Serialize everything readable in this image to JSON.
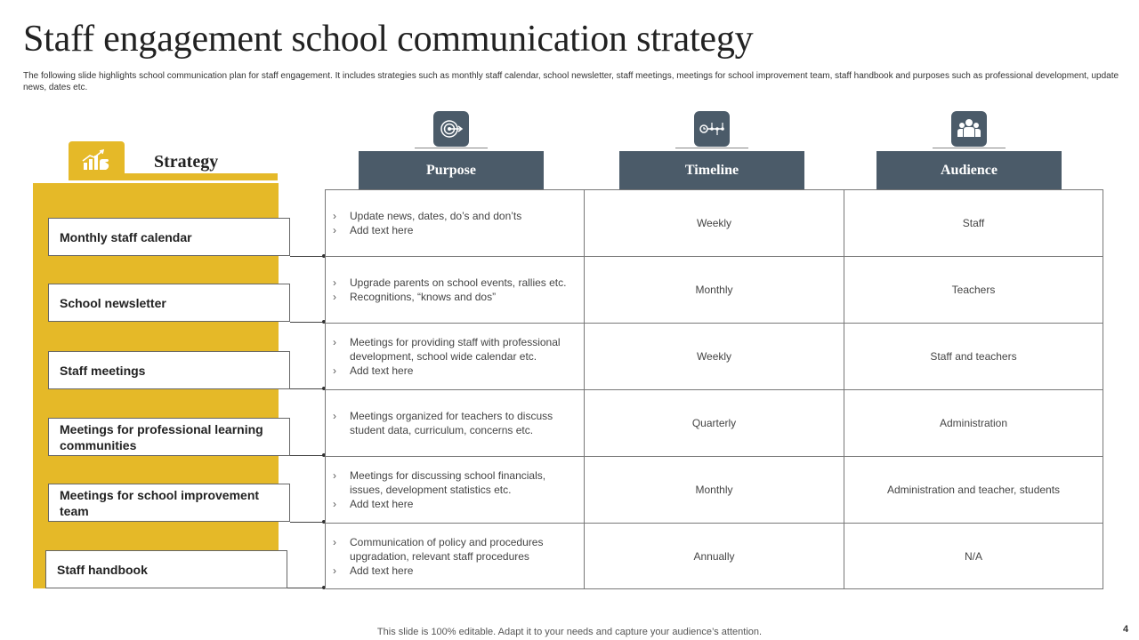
{
  "title": "Staff engagement school communication strategy",
  "description": "The following slide highlights school communication plan  for staff engagement. It includes strategies such as monthly staff calendar, school newsletter, staff meetings, meetings for school improvement team, staff handbook and purposes such as professional development, update news, dates etc.",
  "strategy": {
    "label": "Strategy",
    "icon": "chart-hand-icon",
    "items": [
      "Monthly staff calendar",
      "School newsletter",
      "Staff meetings",
      "Meetings for professional learning communities",
      "Meetings for school improvement team",
      "Staff handbook"
    ]
  },
  "headers": {
    "purpose": {
      "label": "Purpose",
      "icon": "target-icon"
    },
    "timeline": {
      "label": "Timeline",
      "icon": "timeline-icon"
    },
    "audience": {
      "label": "Audience",
      "icon": "people-icon"
    }
  },
  "rows": [
    {
      "purpose": [
        "Update news, dates, do’s and don’ts",
        "Add text here"
      ],
      "timeline": "Weekly",
      "audience": "Staff"
    },
    {
      "purpose": [
        "Upgrade parents on school events, rallies etc.",
        "Recognitions, “knows and dos”"
      ],
      "timeline": "Monthly",
      "audience": "Teachers"
    },
    {
      "purpose": [
        "Meetings for providing staff with professional development,  school wide calendar etc.",
        "Add text here"
      ],
      "timeline": "Weekly",
      "audience": "Staff and teachers"
    },
    {
      "purpose": [
        "Meetings organized for teachers to discuss student data, curriculum, concerns etc."
      ],
      "timeline": "Quarterly",
      "audience": "Administration"
    },
    {
      "purpose": [
        "Meetings for discussing school financials, issues, development  statistics etc.",
        "Add text here"
      ],
      "timeline": "Monthly",
      "audience": "Administration and teacher, students"
    },
    {
      "purpose": [
        "Communication of policy and procedures upgradation, relevant  staff procedures",
        "Add text here"
      ],
      "timeline": "Annually",
      "audience": "N/A"
    }
  ],
  "footer": "This slide is 100% editable. Adapt it to your needs and capture your audience’s attention.",
  "page_number": "4",
  "colors": {
    "accent": "#E5B928",
    "header": "#4B5B69"
  }
}
